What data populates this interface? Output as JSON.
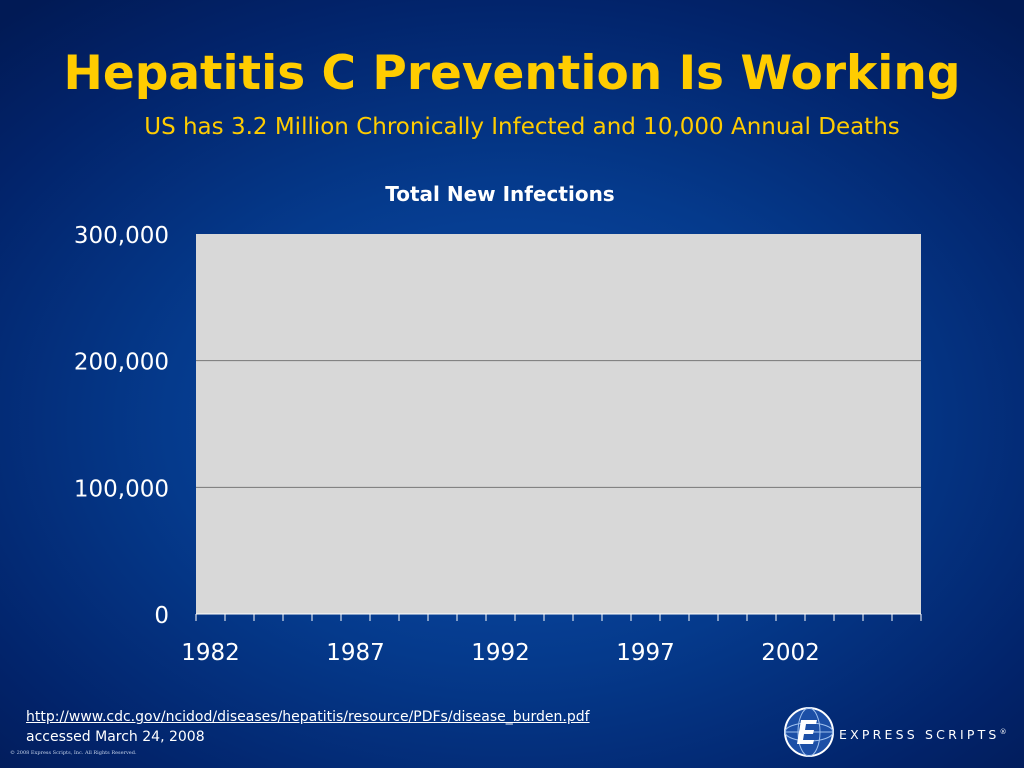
{
  "slide": {
    "title": "Hepatitis C Prevention Is Working",
    "subtitle": "US has 3.2 Million Chronically Infected and 10,000 Annual Deaths"
  },
  "chart_data": {
    "type": "bar",
    "title": "Total New Infections",
    "xlabel": "",
    "ylabel": "",
    "ylim": [
      0,
      300000
    ],
    "y_ticks": [
      "0",
      "100,000",
      "200,000",
      "300,000"
    ],
    "y_tick_values": [
      0,
      100000,
      200000,
      300000
    ],
    "x_ticks": [
      "1982",
      "1987",
      "1992",
      "1997",
      "2002"
    ],
    "x_tick_years": [
      1982,
      1987,
      1992,
      1997,
      2002
    ],
    "x_range_years": [
      1982,
      2006
    ],
    "categories": [],
    "values": [],
    "grid": true,
    "legend": "none",
    "plot_background": "#d8d8d8",
    "gridline_color": "#777777"
  },
  "footer": {
    "source_url": "http://www.cdc.gov/ncidod/diseases/hepatitis/resource/PDFs/disease_burden.pdf",
    "accessed": "accessed March 24, 2008",
    "copyright": "© 2008 Express Scripts, Inc. All Rights Reserved."
  },
  "logo": {
    "name": "EXPRESS SCRIPTS",
    "reg": "®",
    "icon": "express-scripts-globe-icon"
  },
  "colors": {
    "title": "#ffcc00",
    "background": "#053a8c",
    "text": "#ffffff"
  }
}
